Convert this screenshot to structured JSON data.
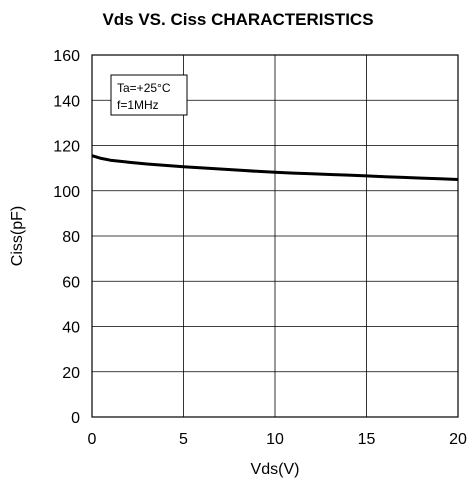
{
  "chart_data": {
    "type": "line",
    "title": "Vds  VS. Ciss CHARACTERISTICS",
    "xlabel": "Vds(V)",
    "ylabel": "Ciss(pF)",
    "xlim": [
      0,
      20
    ],
    "ylim": [
      0,
      160
    ],
    "xticks": [
      "0",
      "5",
      "10",
      "15",
      "20"
    ],
    "yticks": [
      "0",
      "20",
      "40",
      "60",
      "80",
      "100",
      "120",
      "140",
      "160"
    ],
    "grid": true,
    "annotation_lines": [
      "Ta=+25°C",
      "f=1MHz"
    ],
    "annotation_position": "top-left",
    "series": [
      {
        "color": "#000000",
        "x": [
          0,
          0.5,
          1,
          2,
          3,
          4,
          5,
          6,
          7,
          8,
          9,
          10,
          11,
          12,
          13,
          14,
          15,
          16,
          17,
          18,
          19,
          20
        ],
        "y": [
          115.5,
          114.3,
          113.5,
          112.6,
          111.8,
          111.2,
          110.6,
          110.1,
          109.6,
          109.1,
          108.6,
          108.2,
          107.8,
          107.5,
          107.2,
          106.9,
          106.6,
          106.2,
          105.9,
          105.6,
          105.3,
          105.0
        ]
      }
    ]
  }
}
